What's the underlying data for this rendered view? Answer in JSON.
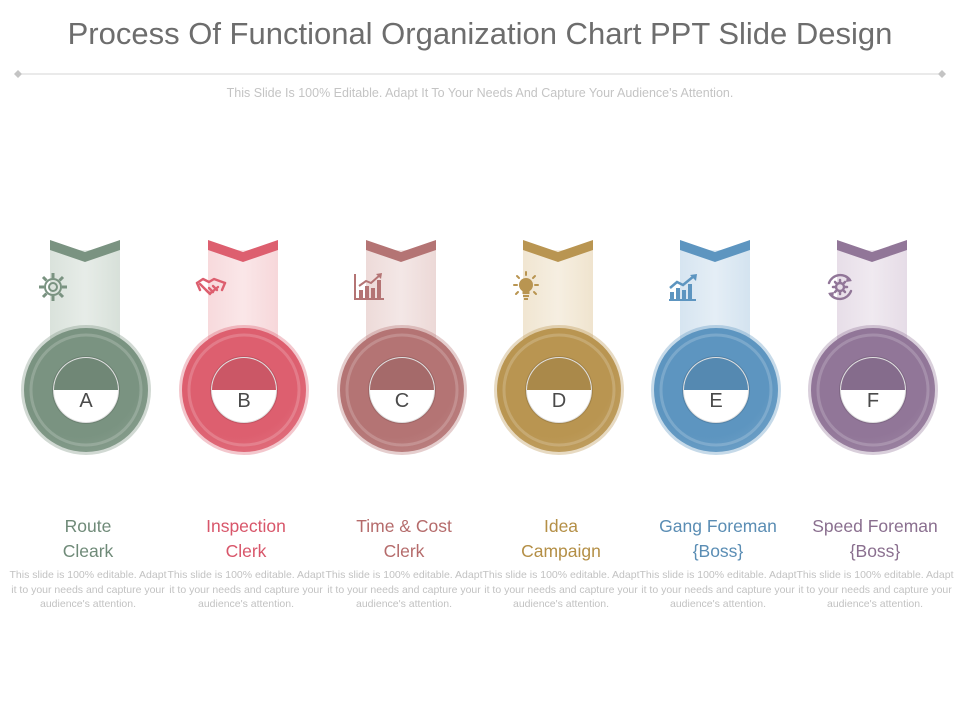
{
  "title": "Process Of Functional Organization Chart PPT Slide Design",
  "subtitle": "This Slide Is 100% Editable. Adapt It To Your Needs And Capture Your Audience's Attention.",
  "items": [
    {
      "letter": "A",
      "title_line1": "Route",
      "title_line2": "Cleark",
      "desc": "This slide is 100% editable. Adapt it to your needs and capture your audience's attention.",
      "color": "#7a9381",
      "light": "#d3ddd5",
      "title_color": "#6f8a78",
      "icon": "gear-icon"
    },
    {
      "letter": "B",
      "title_line1": "Inspection",
      "title_line2": "Clerk",
      "desc": "This slide is 100% editable. Adapt it to your needs and capture your audience's attention.",
      "color": "#dd5f6f",
      "light": "#f6d3d6",
      "title_color": "#d8566a",
      "icon": "handshake-icon"
    },
    {
      "letter": "C",
      "title_line1": "Time  & Cost",
      "title_line2": "Clerk",
      "desc": "This slide is 100% editable. Adapt it to your needs and capture your audience's attention.",
      "color": "#b47474",
      "light": "#ead4d2",
      "title_color": "#b56b6b",
      "icon": "bar-chart-icon"
    },
    {
      "letter": "D",
      "title_line1": "Idea",
      "title_line2": "Campaign",
      "desc": "This slide is 100% editable. Adapt it to your needs and capture your audience's attention.",
      "color": "#b99551",
      "light": "#eee1c9",
      "title_color": "#b48f46",
      "icon": "lightbulb-icon"
    },
    {
      "letter": "E",
      "title_line1": "Gang Foreman",
      "title_line2": "{Boss}",
      "desc": "This slide is 100% editable. Adapt it to your needs and capture your audience's attention.",
      "color": "#5d95c0",
      "light": "#cfe0ee",
      "title_color": "#5a8db4",
      "icon": "growth-chart-icon"
    },
    {
      "letter": "F",
      "title_line1": "Speed Foreman",
      "title_line2": "{Boss}",
      "desc": "This slide is 100% editable. Adapt it to your needs and capture your audience's attention.",
      "color": "#917698",
      "light": "#e3d8e4",
      "title_color": "#8a6f8f",
      "icon": "cycle-gear-icon"
    }
  ]
}
